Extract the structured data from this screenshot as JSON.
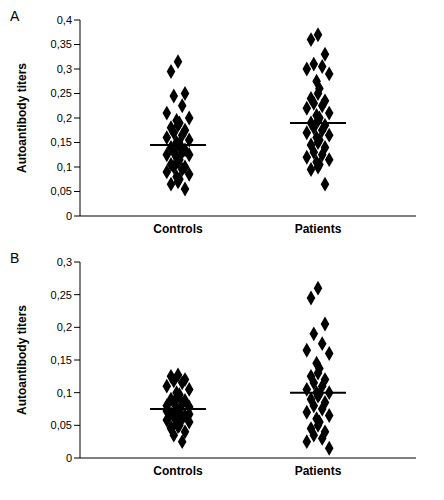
{
  "chart_data": [
    {
      "type": "scatter",
      "title": "A",
      "y_label": "Autoantibody titers",
      "marker": "diamond",
      "xlim": [
        0.3,
        2.7
      ],
      "xticks": [
        {
          "value": 1,
          "label": "Controls"
        },
        {
          "value": 2,
          "label": "Patients"
        }
      ],
      "ylim": [
        0,
        0.4
      ],
      "yticks": [
        0,
        {
          "value": 0.05,
          "label": "0,05"
        },
        {
          "value": 0.1,
          "label": "0,1"
        },
        {
          "value": 0.15,
          "label": "0,15"
        },
        {
          "value": 0.2,
          "label": "0,2"
        },
        {
          "value": 0.25,
          "label": "0,25"
        },
        {
          "value": 0.3,
          "label": "0,3"
        },
        {
          "value": 0.35,
          "label": "0,35"
        },
        {
          "value": 0.4,
          "label": "0,4"
        }
      ],
      "series": [
        {
          "name": "Controls",
          "color": "#000000",
          "median": 0.145,
          "x": [
            1,
            0.95,
            1.05,
            0.97,
            1.03,
            0.92,
            1.08,
            0.99,
            1.01,
            1,
            0.95,
            1.05,
            0.97,
            1.03,
            0.92,
            1.08,
            0.99,
            1.01,
            1,
            0.95,
            1.05,
            0.97,
            1.03,
            0.92,
            1.08,
            0.99,
            1.01,
            1,
            0.95,
            1.05,
            0.97,
            1.03,
            0.92,
            1.08,
            0.99,
            1.01,
            1,
            0.95,
            1.05
          ],
          "values": [
            0.315,
            0.295,
            0.25,
            0.245,
            0.225,
            0.21,
            0.2,
            0.195,
            0.19,
            0.185,
            0.18,
            0.175,
            0.17,
            0.165,
            0.16,
            0.155,
            0.15,
            0.148,
            0.145,
            0.14,
            0.135,
            0.13,
            0.13,
            0.125,
            0.125,
            0.12,
            0.115,
            0.11,
            0.105,
            0.1,
            0.1,
            0.095,
            0.09,
            0.085,
            0.08,
            0.075,
            0.07,
            0.065,
            0.055
          ]
        },
        {
          "name": "Patients",
          "color": "#000000",
          "median": 0.19,
          "x": [
            2,
            1.95,
            2.05,
            1.97,
            2.03,
            1.92,
            2.08,
            1.99,
            2.01,
            2,
            1.95,
            2.05,
            1.97,
            2.03,
            1.92,
            2.08,
            1.99,
            2.01,
            2,
            1.95,
            2.05,
            1.97,
            2.03,
            1.92,
            2.08,
            1.99,
            2.01,
            2,
            1.95,
            2.05,
            1.97,
            2.03,
            1.92,
            2.08,
            1.99,
            2.01,
            2,
            1.95,
            2.05
          ],
          "values": [
            0.37,
            0.36,
            0.33,
            0.31,
            0.305,
            0.3,
            0.29,
            0.275,
            0.26,
            0.25,
            0.24,
            0.235,
            0.23,
            0.225,
            0.22,
            0.21,
            0.205,
            0.2,
            0.195,
            0.19,
            0.185,
            0.18,
            0.175,
            0.17,
            0.165,
            0.16,
            0.155,
            0.15,
            0.145,
            0.14,
            0.13,
            0.125,
            0.12,
            0.115,
            0.11,
            0.105,
            0.1,
            0.095,
            0.065
          ]
        }
      ]
    },
    {
      "type": "scatter",
      "title": "B",
      "y_label": "Autoantibody titers",
      "marker": "diamond",
      "xlim": [
        0.3,
        2.7
      ],
      "xticks": [
        {
          "value": 1,
          "label": "Controls"
        },
        {
          "value": 2,
          "label": "Patients"
        }
      ],
      "ylim": [
        0,
        0.3
      ],
      "yticks": [
        0,
        {
          "value": 0.05,
          "label": "0,05"
        },
        {
          "value": 0.1,
          "label": "0,1"
        },
        {
          "value": 0.15,
          "label": "0,15"
        },
        {
          "value": 0.2,
          "label": "0,2"
        },
        {
          "value": 0.25,
          "label": "0,25"
        },
        {
          "value": 0.3,
          "label": "0,3"
        }
      ],
      "series": [
        {
          "name": "Controls",
          "color": "#000000",
          "median": 0.075,
          "x": [
            1,
            0.95,
            1.05,
            0.97,
            1.03,
            0.92,
            1.08,
            0.99,
            1.01,
            1,
            0.95,
            1.05,
            0.97,
            1.03,
            0.92,
            1.08,
            0.99,
            1.01,
            1,
            0.95,
            1.05,
            0.97,
            1.03,
            0.92,
            1.08,
            0.99,
            1.01,
            1,
            0.95,
            1.05,
            0.97,
            1.03,
            0.92,
            1.08,
            0.99,
            1.01,
            1,
            0.95
          ],
          "values": [
            0.127,
            0.125,
            0.12,
            0.118,
            0.115,
            0.11,
            0.105,
            0.1,
            0.097,
            0.095,
            0.09,
            0.088,
            0.085,
            0.083,
            0.08,
            0.078,
            0.075,
            0.073,
            0.07,
            0.068,
            0.065,
            0.063,
            0.06,
            0.058,
            0.055,
            0.053,
            0.05,
            0.048,
            0.045,
            0.04,
            0.035,
            0.025,
            0.072,
            0.067,
            0.062,
            0.057,
            0.052,
            0.047
          ]
        },
        {
          "name": "Patients",
          "color": "#000000",
          "median": 0.1,
          "x": [
            2,
            1.95,
            2.05,
            1.97,
            2.03,
            1.92,
            2.08,
            1.99,
            2.01,
            2,
            1.95,
            2.05,
            1.97,
            2.03,
            1.92,
            2.08,
            1.99,
            2.01,
            2,
            1.95,
            2.05,
            1.97,
            2.03,
            1.92,
            2.08,
            1.99,
            2.01,
            2,
            1.95,
            2.05,
            1.97,
            2.03,
            1.92,
            2.08
          ],
          "values": [
            0.26,
            0.245,
            0.205,
            0.19,
            0.175,
            0.165,
            0.16,
            0.145,
            0.137,
            0.13,
            0.125,
            0.12,
            0.115,
            0.11,
            0.105,
            0.1,
            0.1,
            0.098,
            0.095,
            0.09,
            0.085,
            0.08,
            0.075,
            0.07,
            0.065,
            0.06,
            0.055,
            0.05,
            0.045,
            0.04,
            0.035,
            0.03,
            0.025,
            0.015
          ]
        }
      ]
    }
  ]
}
